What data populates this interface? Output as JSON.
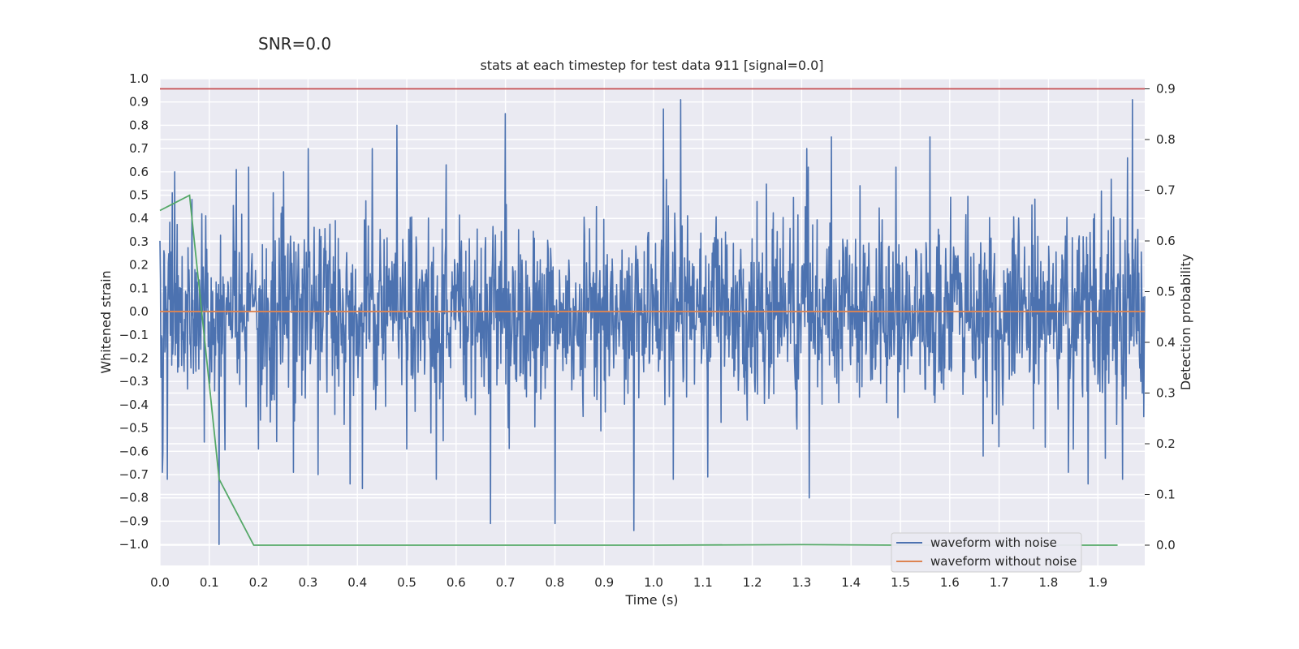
{
  "chart_data": {
    "type": "line",
    "suptitle": "SNR=0.0",
    "title": "stats at each timestep for test data 911 [signal=0.0]",
    "xlabel": "Time (s)",
    "ylabel": "Whitened strain",
    "y2label": "Detection probability",
    "xlim": [
      0.0,
      1.995
    ],
    "ylim": [
      -1.09,
      1.0
    ],
    "y2lim": [
      -0.04,
      0.92
    ],
    "x_ticks": [
      "0.0",
      "0.1",
      "0.2",
      "0.3",
      "0.4",
      "0.5",
      "0.6",
      "0.7",
      "0.8",
      "0.9",
      "1.0",
      "1.1",
      "1.2",
      "1.3",
      "1.4",
      "1.5",
      "1.6",
      "1.7",
      "1.8",
      "1.9"
    ],
    "y_ticks": [
      "1.0",
      "0.9",
      "0.8",
      "0.7",
      "0.6",
      "0.5",
      "0.4",
      "0.3",
      "0.2",
      "0.1",
      "0.0",
      "−0.1",
      "−0.2",
      "−0.3",
      "−0.4",
      "−0.5",
      "−0.6",
      "−0.7",
      "−0.8",
      "−0.9",
      "−1.0"
    ],
    "y2_ticks": [
      "0.9",
      "0.8",
      "0.7",
      "0.6",
      "0.5",
      "0.4",
      "0.3",
      "0.2",
      "0.1",
      "0.0"
    ],
    "grid": true,
    "legend_position": "lower-right",
    "series": [
      {
        "name": "waveform with noise",
        "axis": "left",
        "color": "#4c72b0",
        "noise_amplitude": 0.32,
        "sample_count": 2000,
        "peaks": [
          [
            0.005,
            -0.69
          ],
          [
            0.015,
            -0.72
          ],
          [
            0.025,
            0.51
          ],
          [
            0.03,
            0.6
          ],
          [
            0.085,
            0.42
          ],
          [
            0.09,
            -0.56
          ],
          [
            0.12,
            -1.0
          ],
          [
            0.155,
            0.61
          ],
          [
            0.18,
            0.62
          ],
          [
            0.2,
            -0.59
          ],
          [
            0.23,
            0.51
          ],
          [
            0.25,
            0.6
          ],
          [
            0.27,
            -0.69
          ],
          [
            0.3,
            0.7
          ],
          [
            0.32,
            -0.7
          ],
          [
            0.385,
            0.73
          ],
          [
            0.385,
            -0.74
          ],
          [
            0.41,
            -0.76
          ],
          [
            0.43,
            0.7
          ],
          [
            0.48,
            0.8
          ],
          [
            0.5,
            0.72
          ],
          [
            0.5,
            -0.59
          ],
          [
            0.56,
            -0.72
          ],
          [
            0.58,
            0.63
          ],
          [
            0.67,
            -0.91
          ],
          [
            0.7,
            0.85
          ],
          [
            0.8,
            -0.91
          ],
          [
            0.96,
            -0.94
          ],
          [
            1.02,
            0.87
          ],
          [
            1.055,
            0.91
          ],
          [
            1.04,
            -0.72
          ],
          [
            1.11,
            -0.71
          ],
          [
            1.31,
            0.7
          ],
          [
            1.315,
            -0.8
          ],
          [
            1.36,
            0.75
          ],
          [
            1.56,
            0.75
          ],
          [
            1.7,
            -0.58
          ],
          [
            1.84,
            -0.69
          ],
          [
            1.88,
            -0.74
          ],
          [
            1.915,
            -0.63
          ],
          [
            1.95,
            -0.72
          ],
          [
            1.96,
            0.66
          ],
          [
            1.97,
            0.91
          ],
          [
            1.99,
            -0.35
          ]
        ]
      },
      {
        "name": "waveform without noise",
        "axis": "left",
        "color": "#dd8452",
        "x": [
          0.0,
          1.995
        ],
        "y": [
          0.0,
          0.0
        ]
      },
      {
        "axis": "right",
        "color": "#55a868",
        "x": [
          0.0,
          0.06,
          0.12,
          0.19,
          0.25,
          0.5,
          1.0,
          1.3,
          1.5,
          1.94
        ],
        "y": [
          0.66,
          0.69,
          0.13,
          0.0,
          0.0,
          0.0,
          0.0,
          0.001,
          0.0,
          0.0
        ]
      },
      {
        "axis": "right",
        "color": "#c44e52",
        "x": [
          0.0,
          1.995
        ],
        "y": [
          0.9,
          0.9
        ]
      }
    ]
  }
}
